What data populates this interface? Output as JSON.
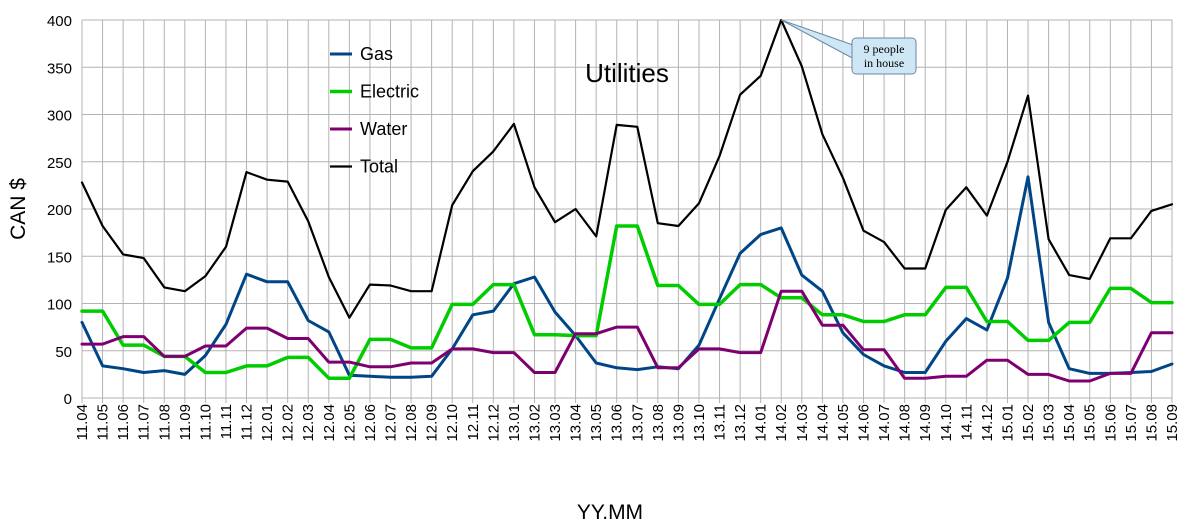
{
  "chart_data": {
    "type": "line",
    "title": "Utilities",
    "xlabel": "YY.MM",
    "ylabel": "CAN $",
    "ylim": [
      0,
      400
    ],
    "yticks": [
      "0",
      "50",
      "100",
      "150",
      "200",
      "250",
      "300",
      "350",
      "400"
    ],
    "grid": true,
    "legend_position": "top-left",
    "categories": [
      "11.04",
      "11.05",
      "11.06",
      "11.07",
      "11.08",
      "11.09",
      "11.10",
      "11.11",
      "11.12",
      "12.01",
      "12.02",
      "12.03",
      "12.04",
      "12.05",
      "12.06",
      "12.07",
      "12.08",
      "12.09",
      "12.10",
      "12.11",
      "12.12",
      "13.01",
      "13.02",
      "13.03",
      "13.04",
      "13.05",
      "13.06",
      "13.07",
      "13.08",
      "13.09",
      "13.10",
      "13.11",
      "13.12",
      "14.01",
      "14.02",
      "14.03",
      "14.04",
      "14.05",
      "14.06",
      "14.07",
      "14.08",
      "14.09",
      "14.10",
      "14.11",
      "14.12",
      "15.01",
      "15.02",
      "15.03",
      "15.04",
      "15.05",
      "15.06",
      "15.07",
      "15.08",
      "15.09"
    ],
    "series": [
      {
        "name": "Gas",
        "color": "#004586",
        "values": [
          80,
          34,
          31,
          27,
          29,
          25,
          45,
          78,
          131,
          123,
          123,
          82,
          70,
          24,
          23,
          22,
          22,
          23,
          52,
          88,
          92,
          121,
          128,
          91,
          66,
          37,
          32,
          30,
          33,
          31,
          56,
          105,
          153,
          173,
          180,
          130,
          113,
          69,
          46,
          34,
          27,
          27,
          60,
          84,
          72,
          127,
          234,
          80,
          31,
          26,
          26,
          27,
          28,
          36
        ]
      },
      {
        "name": "Electric",
        "color": "#00cc00",
        "values": [
          92,
          92,
          56,
          56,
          44,
          44,
          27,
          27,
          34,
          34,
          43,
          43,
          21,
          21,
          62,
          62,
          53,
          53,
          99,
          99,
          120,
          120,
          67,
          67,
          66,
          66,
          182,
          182,
          119,
          119,
          99,
          99,
          120,
          120,
          106,
          106,
          88,
          88,
          81,
          81,
          88,
          88,
          117,
          117,
          81,
          81,
          61,
          61,
          80,
          80,
          116,
          116,
          101,
          101
        ]
      },
      {
        "name": "Water",
        "color": "#7e0070",
        "values": [
          57,
          57,
          65,
          65,
          44,
          44,
          55,
          55,
          74,
          74,
          63,
          63,
          38,
          38,
          33,
          33,
          37,
          37,
          52,
          52,
          48,
          48,
          27,
          27,
          68,
          68,
          75,
          75,
          32,
          32,
          52,
          52,
          48,
          48,
          113,
          113,
          77,
          77,
          51,
          51,
          21,
          21,
          23,
          23,
          40,
          40,
          25,
          25,
          18,
          18,
          26,
          26,
          69,
          69
        ]
      },
      {
        "name": "Total",
        "color": "#000000",
        "values": [
          228,
          182,
          152,
          148,
          117,
          113,
          129,
          160,
          239,
          231,
          229,
          187,
          128,
          85,
          120,
          119,
          113,
          113,
          204,
          240,
          261,
          290,
          223,
          186,
          200,
          171,
          289,
          287,
          185,
          182,
          206,
          256,
          321,
          341,
          400,
          351,
          279,
          233,
          177,
          165,
          137,
          137,
          199,
          223,
          193,
          250,
          320,
          168,
          130,
          126,
          169,
          169,
          198,
          205
        ]
      }
    ],
    "annotations": [
      {
        "text_lines": [
          "9 people",
          "in house"
        ],
        "x": "14.02",
        "y": 400
      }
    ]
  }
}
